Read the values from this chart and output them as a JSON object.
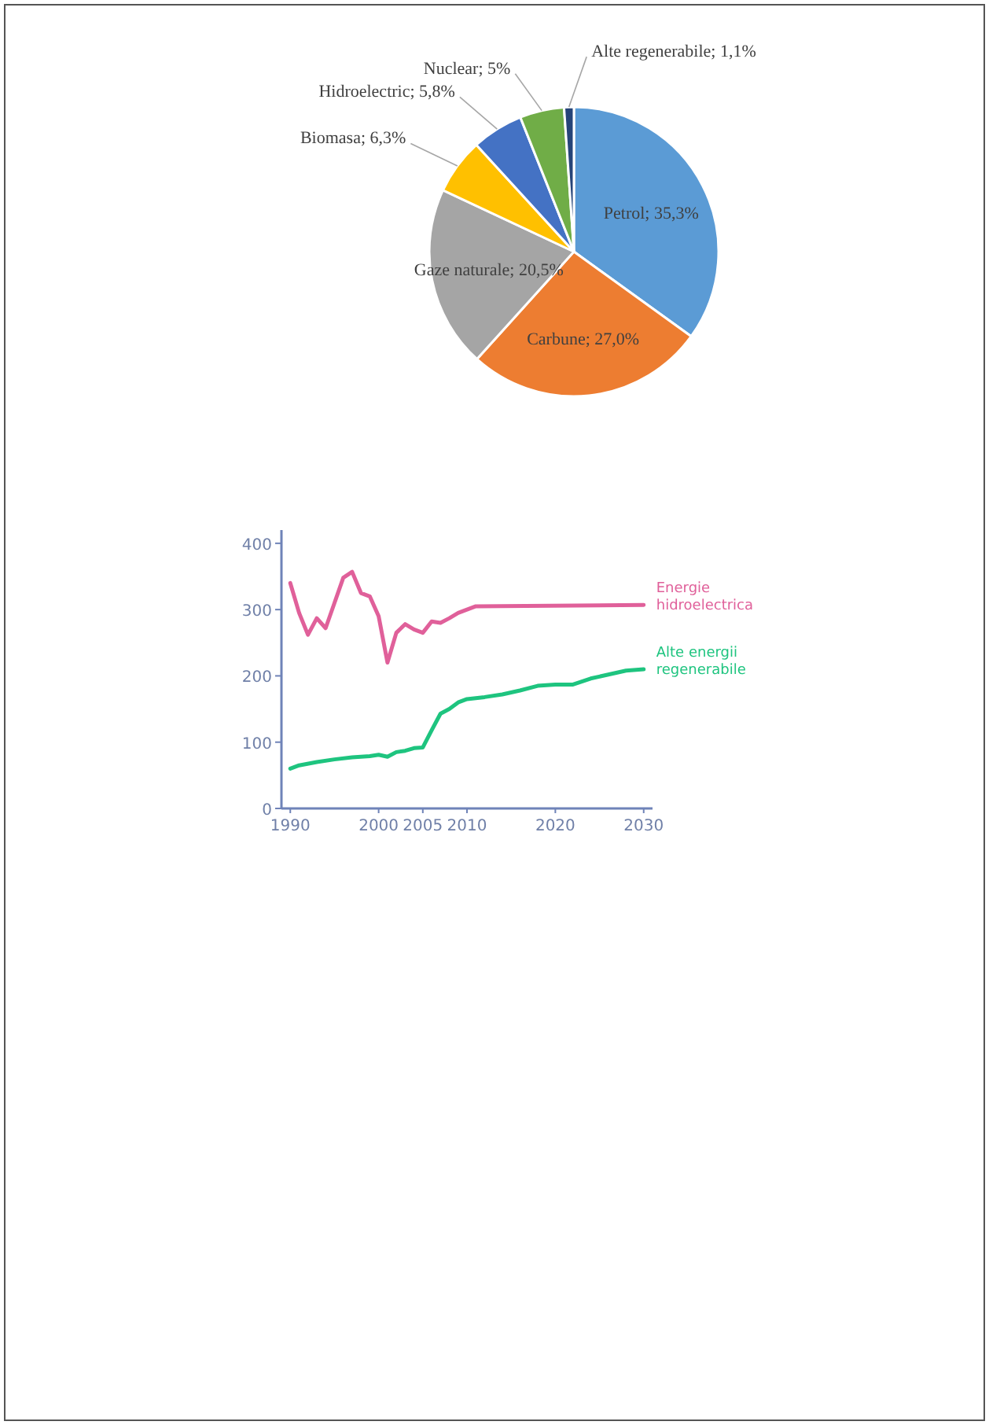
{
  "chart_data": [
    {
      "type": "pie",
      "categories": [
        "Petrol",
        "Carbune",
        "Gaze naturale",
        "Biomasa",
        "Hidroelectric",
        "Nuclear",
        "Alte regenerabile"
      ],
      "values": [
        35.3,
        27.0,
        20.5,
        6.3,
        5.8,
        5,
        1.1
      ],
      "value_labels": [
        "35,3%",
        "27,0%",
        "20,5%",
        "6,3%",
        "5,8%",
        "5%",
        "1,1%"
      ],
      "colors": [
        "#5b9bd5",
        "#ed7d31",
        "#a5a5a5",
        "#ffc000",
        "#4472c4",
        "#70ad47",
        "#264478"
      ]
    },
    {
      "type": "line",
      "xlim": [
        1989,
        2031
      ],
      "ylim": [
        0,
        420
      ],
      "xticks": [
        1990,
        2000,
        2005,
        2010,
        2020,
        2030
      ],
      "yticks": [
        0,
        100,
        200,
        300,
        400
      ],
      "series": [
        {
          "name": "Energie hidroelectrica",
          "color": "#e0609a",
          "x": [
            1990,
            1991,
            1992,
            1993,
            1994,
            1995,
            1996,
            1997,
            1998,
            1999,
            2000,
            2001,
            2002,
            2003,
            2004,
            2005,
            2006,
            2007,
            2008,
            2009,
            2011,
            2030
          ],
          "values": [
            340,
            295,
            262,
            287,
            272,
            310,
            348,
            357,
            325,
            320,
            290,
            220,
            265,
            278,
            270,
            265,
            282,
            280,
            287,
            295,
            305,
            307
          ]
        },
        {
          "name": "Alte energii regenerabile",
          "color": "#1ec47f",
          "x": [
            1990,
            1991,
            1993,
            1995,
            1997,
            1999,
            2000,
            2001,
            2002,
            2003,
            2004,
            2005,
            2006,
            2007,
            2008,
            2009,
            2010,
            2012,
            2014,
            2016,
            2018,
            2020,
            2022,
            2024,
            2026,
            2028,
            2030
          ],
          "values": [
            60,
            65,
            70,
            74,
            77,
            79,
            81,
            78,
            85,
            87,
            91,
            92,
            118,
            143,
            150,
            160,
            165,
            168,
            172,
            178,
            185,
            187,
            187,
            196,
            202,
            208,
            210
          ]
        }
      ]
    }
  ]
}
